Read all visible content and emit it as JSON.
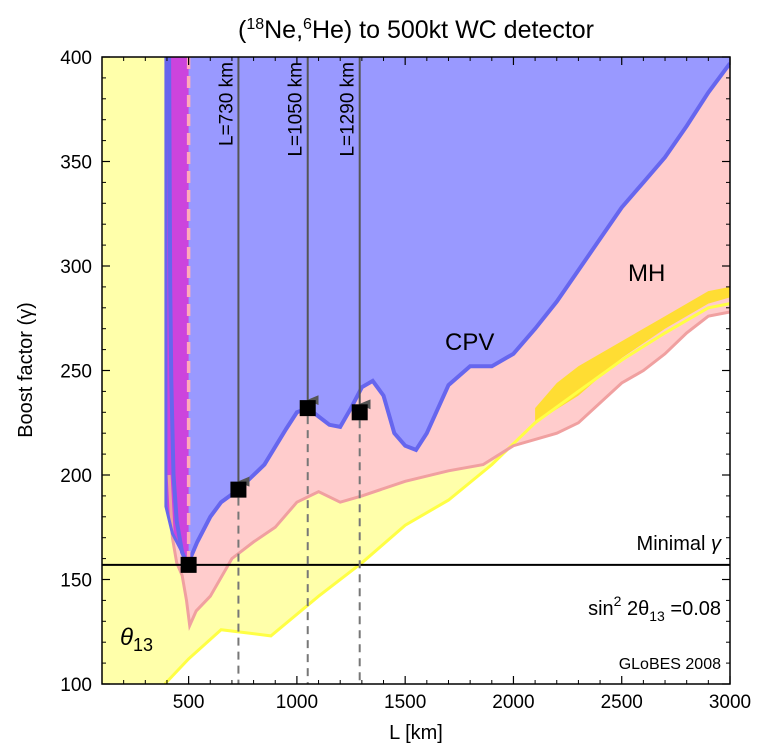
{
  "chart_data": {
    "type": "area",
    "title": {
      "pre": "(",
      "sup1": "18",
      "mid1": "Ne,",
      "sup2": "6",
      "mid2": "He) to 500kt WC detector"
    },
    "xlabel": "L [km]",
    "ylabel": "Boost factor (γ)",
    "xlim": [
      100,
      3000
    ],
    "ylim": [
      100,
      400
    ],
    "xticks": [
      500,
      1000,
      1500,
      2000,
      2500,
      3000
    ],
    "yticks": [
      100,
      150,
      200,
      250,
      300,
      350,
      400
    ],
    "grid": false,
    "colors": {
      "theta13": "#ffffaa",
      "theta13_edge": "#ffff44",
      "mh": "#ffcccc",
      "mh_edge": "#f0a0a0",
      "cpv": "#9999ff",
      "cpv_edge": "#6666ee",
      "magenta": "#cc44dd",
      "gold": "#ffdd33",
      "marker": "#000000",
      "arrow": "#555555"
    },
    "regions": [
      {
        "name": "θ13",
        "points": [
          [
            100,
            400
          ],
          [
            100,
            100
          ],
          [
            390,
            100
          ],
          [
            500,
            112
          ],
          [
            650,
            126
          ],
          [
            880,
            123
          ],
          [
            1100,
            142
          ],
          [
            1300,
            158
          ],
          [
            1500,
            176
          ],
          [
            1700,
            188
          ],
          [
            1900,
            205
          ],
          [
            2100,
            225
          ],
          [
            2300,
            240
          ],
          [
            2500,
            255
          ],
          [
            2700,
            268
          ],
          [
            2900,
            280
          ],
          [
            3000,
            282
          ],
          [
            3000,
            400
          ]
        ]
      },
      {
        "name": "MH",
        "points": [
          [
            410,
            400
          ],
          [
            410,
            200
          ],
          [
            425,
            170
          ],
          [
            445,
            158
          ],
          [
            470,
            152
          ],
          [
            490,
            140
          ],
          [
            505,
            128
          ],
          [
            535,
            135
          ],
          [
            600,
            142
          ],
          [
            700,
            160
          ],
          [
            800,
            168
          ],
          [
            900,
            175
          ],
          [
            1000,
            187
          ],
          [
            1100,
            192
          ],
          [
            1200,
            187
          ],
          [
            1300,
            190
          ],
          [
            1500,
            197
          ],
          [
            1700,
            202
          ],
          [
            1860,
            205
          ],
          [
            2000,
            214
          ],
          [
            2200,
            220
          ],
          [
            2300,
            225
          ],
          [
            2500,
            244
          ],
          [
            2600,
            250
          ],
          [
            2700,
            258
          ],
          [
            2800,
            268
          ],
          [
            2900,
            276
          ],
          [
            3000,
            278
          ],
          [
            3000,
            400
          ]
        ]
      },
      {
        "name": "CPV",
        "points": [
          [
            410,
            400
          ],
          [
            415,
            290
          ],
          [
            420,
            245
          ],
          [
            430,
            200
          ],
          [
            445,
            178
          ],
          [
            470,
            163
          ],
          [
            495,
            157
          ],
          [
            540,
            168
          ],
          [
            600,
            180
          ],
          [
            650,
            187
          ],
          [
            730,
            193
          ],
          [
            850,
            205
          ],
          [
            950,
            222
          ],
          [
            1000,
            230
          ],
          [
            1050,
            232
          ],
          [
            1100,
            228
          ],
          [
            1150,
            224
          ],
          [
            1200,
            223
          ],
          [
            1250,
            232
          ],
          [
            1300,
            242
          ],
          [
            1350,
            245
          ],
          [
            1400,
            238
          ],
          [
            1450,
            220
          ],
          [
            1500,
            214
          ],
          [
            1550,
            212
          ],
          [
            1600,
            220
          ],
          [
            1700,
            243
          ],
          [
            1800,
            252
          ],
          [
            1900,
            252
          ],
          [
            2000,
            258
          ],
          [
            2100,
            270
          ],
          [
            2200,
            283
          ],
          [
            2300,
            298
          ],
          [
            2400,
            313
          ],
          [
            2500,
            328
          ],
          [
            2600,
            340
          ],
          [
            2700,
            352
          ],
          [
            2800,
            367
          ],
          [
            2900,
            383
          ],
          [
            3000,
            397
          ],
          [
            3000,
            400
          ]
        ]
      },
      {
        "name": "magenta",
        "points": [
          [
            395,
            400
          ],
          [
            395,
            185
          ],
          [
            425,
            172
          ],
          [
            460,
            165
          ],
          [
            485,
            160
          ],
          [
            500,
            158
          ],
          [
            500,
            400
          ]
        ]
      },
      {
        "name": "gold",
        "points": [
          [
            2100,
            225
          ],
          [
            2300,
            238
          ],
          [
            2500,
            256
          ],
          [
            2700,
            270
          ],
          [
            2900,
            282
          ],
          [
            3000,
            285
          ],
          [
            3000,
            290
          ],
          [
            2900,
            288
          ],
          [
            2700,
            276
          ],
          [
            2500,
            264
          ],
          [
            2300,
            252
          ],
          [
            2200,
            244
          ],
          [
            2100,
            232
          ]
        ]
      }
    ],
    "dashed_line_x": 500,
    "min_gamma": 157,
    "optimal_points": [
      {
        "x": 500,
        "y": 157
      },
      {
        "x": 730,
        "y": 193
      },
      {
        "x": 1050,
        "y": 232
      },
      {
        "x": 1290,
        "y": 230
      }
    ],
    "baselines": [
      {
        "x": 730,
        "y": 193,
        "label": "L=730 km"
      },
      {
        "x": 1050,
        "y": 232,
        "label": "L=1050 km"
      },
      {
        "x": 1290,
        "y": 230,
        "label": "L=1290 km"
      }
    ],
    "labels": {
      "cpv": "CPV",
      "mh": "MH",
      "theta13_sym": "θ",
      "theta13_sub": "13",
      "min_gamma_text": "Minimal ",
      "min_gamma_sym": "γ",
      "sin_main": "sin",
      "sin_sup": "2",
      "sin_mid": " 2θ",
      "sin_sub": "13",
      "sin_val": " =0.08",
      "globes": "GLoBES 2008"
    }
  }
}
